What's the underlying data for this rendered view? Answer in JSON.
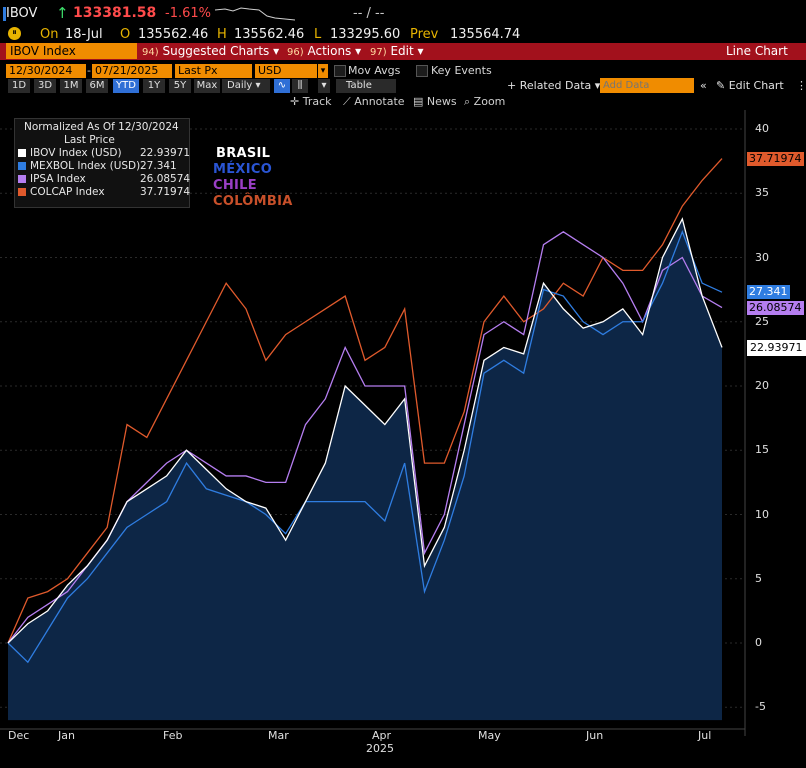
{
  "header": {
    "ticker": "IBOV",
    "last": "133381.58",
    "change_pct": "-1.61%",
    "right_placeholder": "-- / --",
    "date_label": "On",
    "date": "18-Jul",
    "open_label": "O",
    "open": "135562.46",
    "high_label": "H",
    "high": "135562.46",
    "low_label": "L",
    "low": "133295.60",
    "prev_label": "Prev",
    "prev": "135564.74"
  },
  "menu": {
    "security": "IBOV Index",
    "suggested_num": "94)",
    "suggested": "Suggested Charts",
    "actions_num": "96)",
    "actions": "Actions",
    "edit_num": "97)",
    "edit": "Edit",
    "title": "Line Chart"
  },
  "params": {
    "start_date": "12/30/2024",
    "end_date": "07/21/2025",
    "field": "Last Px",
    "currency": "USD",
    "mov_avgs": "Mov Avgs",
    "key_events": "Key Events"
  },
  "toolbar": {
    "periods": [
      "1D",
      "3D",
      "1M",
      "6M",
      "YTD",
      "1Y",
      "5Y",
      "Max"
    ],
    "active_period": "YTD",
    "frequency": "Daily",
    "table": "Table",
    "related_data": "Related Data",
    "add_data_placeholder": "Add Data",
    "edit_chart": "Edit Chart"
  },
  "tools": {
    "track": "Track",
    "annotate": "Annotate",
    "news": "News",
    "zoom": "Zoom"
  },
  "legend": {
    "title": "Normalized As Of 12/30/2024",
    "subtitle": "Last Price",
    "items": [
      {
        "name": "IBOV Index (USD)",
        "value": "22.93971",
        "color": "#ffffff"
      },
      {
        "name": "MEXBOL Index (USD)",
        "value": "27.341",
        "color": "#2f7de1"
      },
      {
        "name": "IPSA Index",
        "value": "26.08574",
        "color": "#b57ef0"
      },
      {
        "name": "COLCAP Index",
        "value": "37.71974",
        "color": "#e05a2c"
      }
    ]
  },
  "annotations": [
    {
      "text": "BRASIL",
      "color": "#ffffff"
    },
    {
      "text": "MÉXICO",
      "color": "#2a55d4"
    },
    {
      "text": "CHILE",
      "color": "#9a3fc6"
    },
    {
      "text": "COLÔMBIA",
      "color": "#c8502a"
    }
  ],
  "chart_data": {
    "type": "line",
    "y_ticks": [
      "40",
      "35",
      "30",
      "25",
      "20",
      "15",
      "10",
      "5",
      "0",
      "-5"
    ],
    "ylim": [
      -6,
      41
    ],
    "x_ticks": [
      "Dec",
      "Jan",
      "Feb",
      "Mar",
      "Apr",
      "May",
      "Jun",
      "Jul"
    ],
    "x_year": "2025",
    "series": [
      {
        "name": "IBOV Index (USD)",
        "color": "#ffffff",
        "last_label": "22.93971",
        "x": [
          0,
          4,
          8,
          12,
          16,
          20,
          24,
          28,
          32,
          36,
          40,
          44,
          48,
          52,
          56,
          60,
          64,
          68,
          72,
          76,
          80,
          84,
          88,
          92,
          96,
          100,
          104,
          108,
          112,
          116,
          120,
          124,
          128,
          132,
          136,
          140,
          144
        ],
        "y": [
          0,
          1.5,
          2.5,
          4.5,
          6,
          8,
          11,
          12,
          13,
          15,
          13.5,
          12,
          11,
          10.5,
          8,
          11,
          14,
          20,
          18.5,
          17,
          19,
          6,
          9,
          15,
          22,
          23,
          22.5,
          28,
          26,
          24.5,
          25,
          26,
          24,
          30,
          33,
          27,
          23
        ]
      },
      {
        "name": "MEXBOL Index (USD)",
        "color": "#2f7de1",
        "last_label": "27.341",
        "x": [
          0,
          4,
          8,
          12,
          16,
          20,
          24,
          28,
          32,
          36,
          40,
          44,
          48,
          52,
          56,
          60,
          64,
          68,
          72,
          76,
          80,
          84,
          88,
          92,
          96,
          100,
          104,
          108,
          112,
          116,
          120,
          124,
          128,
          132,
          136,
          140,
          144
        ],
        "y": [
          0,
          -1.5,
          1,
          3.5,
          5,
          7,
          9,
          10,
          11,
          14,
          12,
          11.5,
          11,
          10,
          8.5,
          11,
          11,
          11,
          11,
          9.5,
          14,
          4,
          8,
          13,
          21,
          22,
          21,
          27.5,
          27,
          25,
          24,
          25,
          25,
          28,
          32,
          28,
          27.3
        ]
      },
      {
        "name": "IPSA Index",
        "color": "#b57ef0",
        "last_label": "26.08574",
        "x": [
          0,
          4,
          8,
          12,
          16,
          20,
          24,
          28,
          32,
          36,
          40,
          44,
          48,
          52,
          56,
          60,
          64,
          68,
          72,
          76,
          80,
          84,
          88,
          92,
          96,
          100,
          104,
          108,
          112,
          116,
          120,
          124,
          128,
          132,
          136,
          140,
          144
        ],
        "y": [
          0,
          2,
          3,
          4,
          6,
          8,
          11,
          12.5,
          14,
          15,
          14,
          13,
          13,
          12.5,
          12.5,
          17,
          19,
          23,
          20,
          20,
          20,
          7,
          10,
          17,
          24,
          25,
          24,
          31,
          32,
          31,
          30,
          28,
          25,
          29,
          30,
          27,
          26.1
        ]
      },
      {
        "name": "COLCAP Index",
        "color": "#e05a2c",
        "last_label": "37.71974",
        "x": [
          0,
          4,
          8,
          12,
          16,
          20,
          24,
          28,
          32,
          36,
          40,
          44,
          48,
          52,
          56,
          60,
          64,
          68,
          72,
          76,
          80,
          84,
          88,
          92,
          96,
          100,
          104,
          108,
          112,
          116,
          120,
          124,
          128,
          132,
          136,
          140,
          144
        ],
        "y": [
          0,
          3.5,
          4,
          5,
          7,
          9,
          17,
          16,
          19,
          22,
          25,
          28,
          26,
          22,
          24,
          25,
          26,
          27,
          22,
          23,
          26,
          14,
          14,
          18,
          25,
          27,
          25,
          26,
          28,
          27,
          30,
          29,
          29,
          31,
          34,
          36,
          37.7
        ]
      }
    ]
  }
}
